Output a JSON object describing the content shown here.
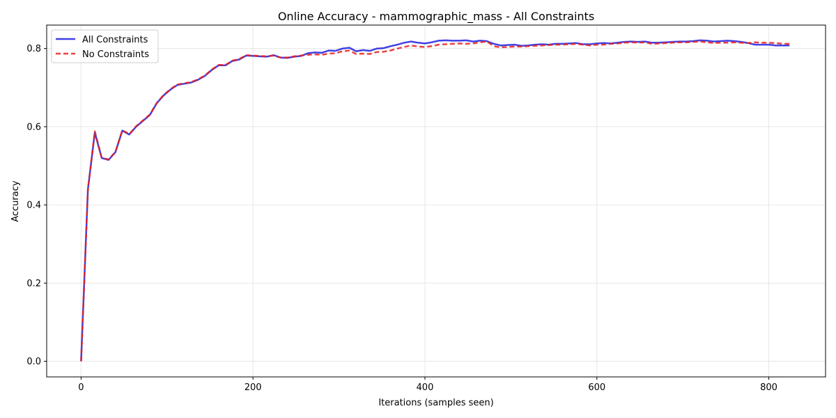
{
  "chart_data": {
    "type": "line",
    "title": "Online Accuracy - mammographic_mass - All Constraints",
    "xlabel": "Iterations (samples seen)",
    "ylabel": "Accuracy",
    "xlim": [
      -40,
      866
    ],
    "ylim": [
      -0.04,
      0.86
    ],
    "xticks": [
      0,
      200,
      400,
      600,
      800
    ],
    "yticks": [
      0.0,
      0.2,
      0.4,
      0.6,
      0.8
    ],
    "xtick_labels": [
      "0",
      "200",
      "400",
      "600",
      "800"
    ],
    "ytick_labels": [
      "0.0",
      "0.2",
      "0.4",
      "0.6",
      "0.8"
    ],
    "grid": true,
    "legend_position": "upper-left",
    "x": [
      0,
      8,
      16,
      24,
      32,
      40,
      48,
      56,
      64,
      72,
      80,
      88,
      96,
      104,
      112,
      120,
      128,
      136,
      144,
      152,
      160,
      168,
      176,
      184,
      192,
      200,
      208,
      216,
      224,
      232,
      240,
      248,
      256,
      264,
      272,
      280,
      288,
      296,
      304,
      312,
      320,
      328,
      336,
      344,
      352,
      360,
      368,
      376,
      384,
      392,
      400,
      408,
      416,
      424,
      432,
      440,
      448,
      456,
      464,
      472,
      480,
      488,
      496,
      504,
      512,
      520,
      528,
      536,
      544,
      552,
      560,
      568,
      576,
      584,
      592,
      600,
      608,
      616,
      624,
      632,
      640,
      648,
      656,
      664,
      672,
      680,
      688,
      696,
      704,
      712,
      720,
      728,
      736,
      744,
      752,
      760,
      768,
      776,
      784,
      792,
      800,
      808,
      816,
      824
    ],
    "series": [
      {
        "name": "All Constraints",
        "color": "#1f1fe0",
        "style": "solid",
        "values": [
          0.0,
          0.44,
          0.585,
          0.52,
          0.515,
          0.535,
          0.59,
          0.58,
          0.6,
          0.615,
          0.63,
          0.66,
          0.68,
          0.695,
          0.707,
          0.71,
          0.713,
          0.72,
          0.73,
          0.745,
          0.757,
          0.757,
          0.768,
          0.772,
          0.782,
          0.781,
          0.78,
          0.779,
          0.783,
          0.777,
          0.776,
          0.779,
          0.781,
          0.788,
          0.79,
          0.789,
          0.795,
          0.794,
          0.8,
          0.802,
          0.793,
          0.796,
          0.794,
          0.8,
          0.801,
          0.806,
          0.81,
          0.815,
          0.818,
          0.815,
          0.813,
          0.816,
          0.82,
          0.821,
          0.82,
          0.82,
          0.821,
          0.818,
          0.82,
          0.819,
          0.812,
          0.808,
          0.809,
          0.81,
          0.807,
          0.808,
          0.81,
          0.811,
          0.81,
          0.812,
          0.812,
          0.813,
          0.814,
          0.811,
          0.811,
          0.813,
          0.814,
          0.813,
          0.815,
          0.817,
          0.818,
          0.817,
          0.818,
          0.815,
          0.815,
          0.816,
          0.817,
          0.818,
          0.818,
          0.819,
          0.821,
          0.82,
          0.818,
          0.819,
          0.82,
          0.819,
          0.817,
          0.814,
          0.81,
          0.81,
          0.81,
          0.808,
          0.808,
          0.808
        ]
      },
      {
        "name": "No Constraints",
        "color": "#e82020",
        "style": "dashed",
        "values": [
          0.0,
          0.44,
          0.588,
          0.521,
          0.516,
          0.536,
          0.591,
          0.581,
          0.601,
          0.616,
          0.631,
          0.661,
          0.681,
          0.696,
          0.708,
          0.711,
          0.714,
          0.721,
          0.731,
          0.746,
          0.758,
          0.758,
          0.769,
          0.773,
          0.783,
          0.782,
          0.781,
          0.78,
          0.782,
          0.777,
          0.777,
          0.78,
          0.782,
          0.784,
          0.785,
          0.784,
          0.787,
          0.788,
          0.793,
          0.795,
          0.786,
          0.787,
          0.786,
          0.791,
          0.792,
          0.795,
          0.8,
          0.804,
          0.808,
          0.805,
          0.804,
          0.806,
          0.81,
          0.811,
          0.812,
          0.813,
          0.812,
          0.813,
          0.816,
          0.818,
          0.806,
          0.803,
          0.804,
          0.805,
          0.805,
          0.806,
          0.807,
          0.808,
          0.809,
          0.81,
          0.81,
          0.811,
          0.812,
          0.81,
          0.808,
          0.81,
          0.81,
          0.812,
          0.813,
          0.815,
          0.816,
          0.815,
          0.816,
          0.812,
          0.813,
          0.814,
          0.815,
          0.816,
          0.816,
          0.817,
          0.818,
          0.816,
          0.814,
          0.815,
          0.815,
          0.816,
          0.815,
          0.814,
          0.816,
          0.815,
          0.815,
          0.814,
          0.812,
          0.812
        ]
      }
    ]
  }
}
